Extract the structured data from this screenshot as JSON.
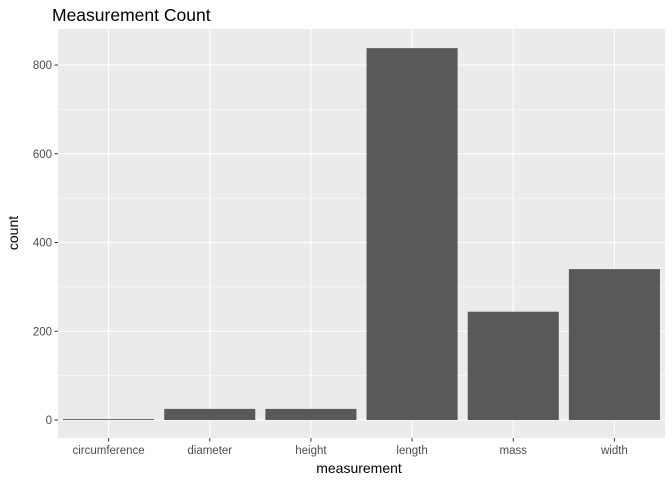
{
  "chart_data": {
    "type": "bar",
    "title": "Measurement Count",
    "xlabel": "measurement",
    "ylabel": "count",
    "categories": [
      "circumference",
      "diameter",
      "height",
      "length",
      "mass",
      "width"
    ],
    "values": [
      2,
      25,
      25,
      838,
      244,
      340
    ],
    "ylim": [
      0,
      880
    ],
    "yticks": [
      0,
      200,
      400,
      600,
      800
    ],
    "grid": true,
    "legend": "none",
    "colors": {
      "bar": "#595959",
      "panel": "#ebebeb",
      "grid_major": "#ffffff",
      "tick_label": "#4d4d4d",
      "tick_mark": "#333333"
    }
  }
}
